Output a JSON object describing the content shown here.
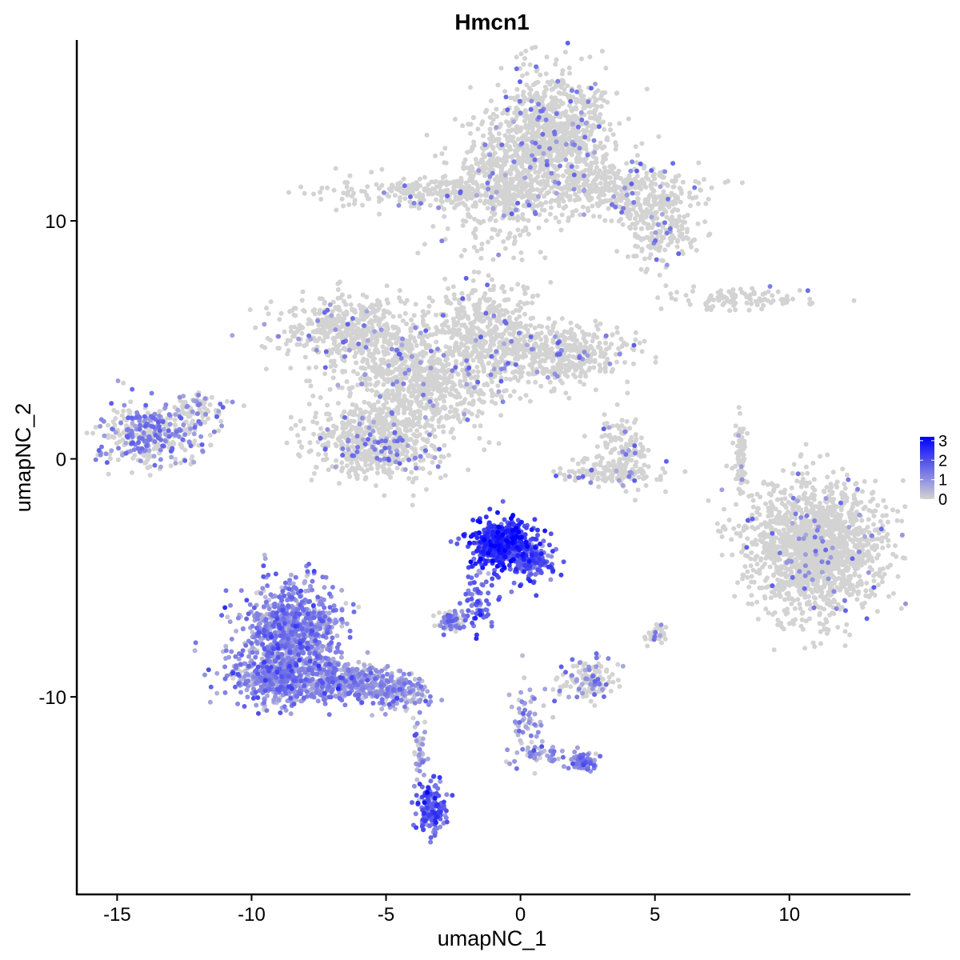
{
  "chart_data": {
    "type": "scatter",
    "title": "Hmcn1",
    "xlabel": "umapNC_1",
    "ylabel": "umapNC_2",
    "xlim": [
      -16.5,
      14.5
    ],
    "ylim": [
      -18.3,
      17.6
    ],
    "x_ticks": [
      -15,
      -10,
      -5,
      0,
      5,
      10
    ],
    "x_tick_labels": [
      "-15",
      "-10",
      "-5",
      "0",
      "5",
      "10"
    ],
    "y_ticks": [
      -10,
      0,
      10
    ],
    "y_tick_labels": [
      "-10",
      "0",
      "10"
    ],
    "grid": false,
    "legend": {
      "position": "right",
      "title": "",
      "type": "colorbar",
      "min": 0,
      "max": 3.2,
      "breaks": [
        0,
        1,
        2,
        3
      ],
      "labels": [
        "0",
        "1",
        "2",
        "3"
      ],
      "low_color": "#D3D3D3",
      "high_color": "#0000FF"
    },
    "expression_scale": {
      "min": 0,
      "max": 3.2,
      "low_color": "#D3D3D3",
      "high_color": "#0000FF"
    },
    "clusters": [
      {
        "name": "",
        "cx": 1.3,
        "cy": 13.7,
        "sx": 1.1,
        "sy": 1.3,
        "n": 900,
        "expr": 0.02
      },
      {
        "name": "",
        "cx": -0.6,
        "cy": 11.6,
        "sx": 1.0,
        "sy": 1.4,
        "n": 500,
        "expr": 0.02
      },
      {
        "name": "",
        "cx": -3.0,
        "cy": 11.2,
        "sx": 1.9,
        "sy": 0.35,
        "n": 280,
        "expr": 0.02
      },
      {
        "name": "",
        "cx": 3.7,
        "cy": 11.3,
        "sx": 1.4,
        "sy": 0.6,
        "n": 350,
        "expr": 0.02
      },
      {
        "name": "",
        "cx": 5.2,
        "cy": 9.8,
        "sx": 0.7,
        "sy": 0.9,
        "n": 220,
        "expr": 0.02
      },
      {
        "name": "",
        "cx": -6.5,
        "cy": 5.4,
        "sx": 1.2,
        "sy": 0.7,
        "n": 450,
        "expr": 0.02
      },
      {
        "name": "",
        "cx": -1.4,
        "cy": 5.4,
        "sx": 1.0,
        "sy": 0.9,
        "n": 450,
        "expr": 0.02
      },
      {
        "name": "",
        "cx": 1.5,
        "cy": 4.4,
        "sx": 1.3,
        "sy": 0.6,
        "n": 450,
        "expr": 0.02
      },
      {
        "name": "",
        "cx": -4.4,
        "cy": 3.7,
        "sx": 0.9,
        "sy": 1.3,
        "n": 400,
        "expr": 0.02
      },
      {
        "name": "",
        "cx": -3.0,
        "cy": 3.0,
        "sx": 1.3,
        "sy": 0.8,
        "n": 300,
        "expr": 0.02
      },
      {
        "name": "",
        "cx": -5.3,
        "cy": 0.8,
        "sx": 1.3,
        "sy": 0.8,
        "n": 650,
        "expr": 0.03
      },
      {
        "name": "",
        "cx": -13.6,
        "cy": 1.0,
        "sx": 1.0,
        "sy": 0.65,
        "n": 380,
        "expr": 0.15
      },
      {
        "name": "",
        "cx": -11.9,
        "cy": 2.2,
        "sx": 0.5,
        "sy": 0.3,
        "n": 60,
        "expr": 0.1
      },
      {
        "name": "",
        "cx": 3.8,
        "cy": 0.3,
        "sx": 0.5,
        "sy": 0.7,
        "n": 140,
        "expr": 0.03
      },
      {
        "name": "",
        "cx": 3.5,
        "cy": -0.6,
        "sx": 1.0,
        "sy": 0.25,
        "n": 120,
        "expr": 0.03
      },
      {
        "name": "",
        "cx": 8.3,
        "cy": 6.7,
        "sx": 1.2,
        "sy": 0.2,
        "n": 100,
        "expr": 0.02
      },
      {
        "name": "",
        "cx": 8.2,
        "cy": 0.2,
        "sx": 0.12,
        "sy": 0.9,
        "n": 70,
        "expr": 0.02
      },
      {
        "name": "",
        "cx": 11.0,
        "cy": -3.7,
        "sx": 1.3,
        "sy": 1.4,
        "n": 1600,
        "expr": 0.01
      },
      {
        "name": "",
        "cx": -0.8,
        "cy": -3.5,
        "sx": 0.6,
        "sy": 0.5,
        "n": 420,
        "expr": 2.3
      },
      {
        "name": "",
        "cx": 0.4,
        "cy": -4.3,
        "sx": 0.45,
        "sy": 0.5,
        "n": 160,
        "expr": 1.8
      },
      {
        "name": "",
        "cx": -1.6,
        "cy": -5.9,
        "sx": 0.3,
        "sy": 0.8,
        "n": 70,
        "expr": 1.5
      },
      {
        "name": "",
        "cx": -8.5,
        "cy": -7.2,
        "sx": 0.9,
        "sy": 1.0,
        "n": 800,
        "expr": 1.0
      },
      {
        "name": "",
        "cx": -9.0,
        "cy": -9.2,
        "sx": 0.9,
        "sy": 0.55,
        "n": 500,
        "expr": 1.0
      },
      {
        "name": "",
        "cx": -6.5,
        "cy": -9.3,
        "sx": 0.9,
        "sy": 0.45,
        "n": 350,
        "expr": 0.95
      },
      {
        "name": "",
        "cx": -4.6,
        "cy": -9.8,
        "sx": 0.6,
        "sy": 0.35,
        "n": 180,
        "expr": 0.8
      },
      {
        "name": "",
        "cx": -3.3,
        "cy": -14.7,
        "sx": 0.25,
        "sy": 0.55,
        "n": 160,
        "expr": 1.6
      },
      {
        "name": "",
        "cx": -3.8,
        "cy": -12.4,
        "sx": 0.12,
        "sy": 0.9,
        "n": 40,
        "expr": 0.6
      },
      {
        "name": "",
        "cx": -2.6,
        "cy": -6.8,
        "sx": 0.3,
        "sy": 0.2,
        "n": 90,
        "expr": 0.15
      },
      {
        "name": "",
        "cx": 2.5,
        "cy": -9.3,
        "sx": 0.5,
        "sy": 0.35,
        "n": 130,
        "expr": 0.1
      },
      {
        "name": "",
        "cx": 5.0,
        "cy": -7.4,
        "sx": 0.2,
        "sy": 0.2,
        "n": 40,
        "expr": 0.1
      },
      {
        "name": "",
        "cx": 2.4,
        "cy": -12.8,
        "sx": 0.3,
        "sy": 0.2,
        "n": 60,
        "expr": 1.1
      },
      {
        "name": "",
        "cx": 0.3,
        "cy": -11.0,
        "sx": 0.3,
        "sy": 0.9,
        "n": 70,
        "expr": 0.6
      },
      {
        "name": "",
        "cx": 1.3,
        "cy": -12.4,
        "sx": 0.7,
        "sy": 0.2,
        "n": 40,
        "expr": 0.8
      }
    ]
  }
}
